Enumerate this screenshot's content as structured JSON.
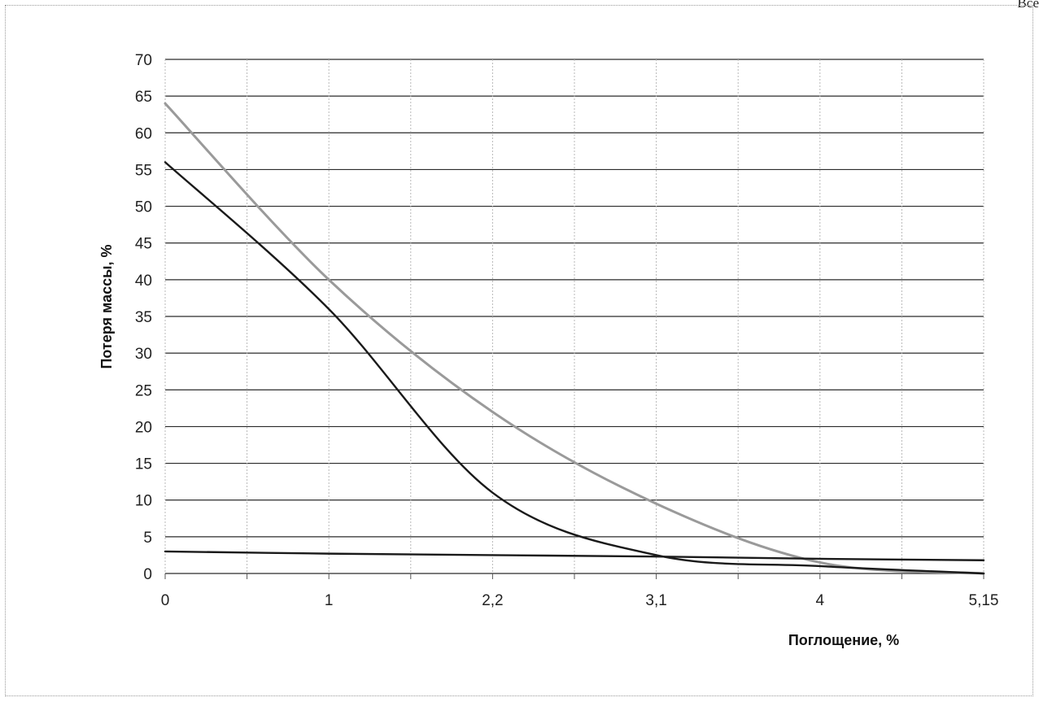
{
  "corner_text": "Все",
  "chart_data": {
    "type": "line",
    "title": "",
    "xlabel": "Поглощение, %",
    "ylabel": "Потеря массы, %",
    "categories": [
      "0",
      "1",
      "2,2",
      "3,1",
      "4",
      "5,15"
    ],
    "x": [
      0,
      1,
      2.2,
      3.1,
      4,
      5.15
    ],
    "ylim": [
      0,
      70
    ],
    "yticks": [
      0,
      5,
      10,
      15,
      20,
      25,
      30,
      35,
      40,
      45,
      50,
      55,
      60,
      65,
      70
    ],
    "grid": true,
    "legend": "none",
    "series": [
      {
        "values": [
          64,
          40,
          22,
          9.5,
          1.5,
          0
        ],
        "color": "#9a9a9a"
      },
      {
        "values": [
          56,
          36,
          11,
          2.5,
          1,
          0
        ],
        "color": "#1a1a1a"
      },
      {
        "values": [
          3,
          2.7,
          2.5,
          2.3,
          2,
          1.8
        ],
        "color": "#1a1a1a"
      }
    ]
  }
}
